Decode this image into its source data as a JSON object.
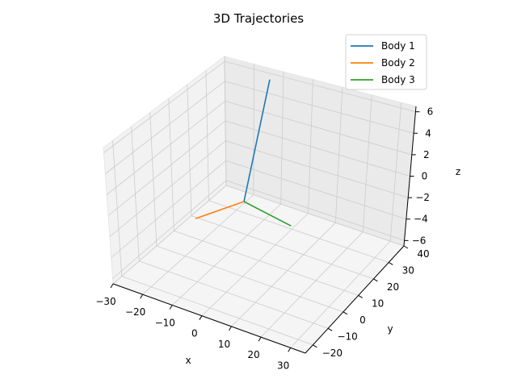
{
  "chart_data": {
    "type": "line",
    "title": "3D Trajectories",
    "xlabel": "x",
    "ylabel": "y",
    "zlabel": "z",
    "xticks": [
      "−30",
      "−20",
      "−10",
      "0",
      "10",
      "20",
      "30"
    ],
    "yticks": [
      "−20",
      "−10",
      "0",
      "10",
      "20",
      "30",
      "40"
    ],
    "zticks": [
      "−6",
      "−4",
      "−2",
      "0",
      "2",
      "4",
      "6"
    ],
    "xlim": [
      -30,
      35
    ],
    "ylim": [
      -25,
      40
    ],
    "zlim": [
      -6.5,
      6.5
    ],
    "grid": true,
    "legend_position": "top-right",
    "series": [
      {
        "name": "Body 1",
        "color": "#1f77b4",
        "x": [
          0,
          8
        ],
        "y": [
          0,
          15
        ],
        "z": [
          0,
          9
        ]
      },
      {
        "name": "Body 2",
        "color": "#ff7f0e",
        "x": [
          0,
          -24
        ],
        "y": [
          0,
          -18
        ],
        "z": [
          0,
          -1
        ]
      },
      {
        "name": "Body 3",
        "color": "#2ca02c",
        "x": [
          0,
          30
        ],
        "y": [
          0,
          10
        ],
        "z": [
          0,
          -1.5
        ]
      }
    ]
  }
}
